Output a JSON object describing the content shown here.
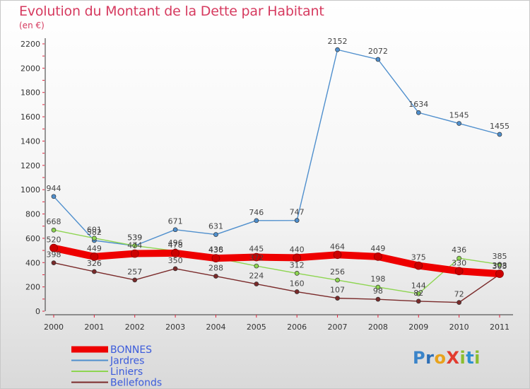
{
  "header": {
    "title": "Evolution du Montant de la Dette par Habitant",
    "subtitle": "(en €)"
  },
  "logo": {
    "text": "ProXiti"
  },
  "chart_data": {
    "type": "line",
    "title": "Evolution du Montant de la Dette par Habitant",
    "subtitle": "(en €)",
    "xlabel": "",
    "ylabel": "",
    "x": [
      "2000",
      "2001",
      "2002",
      "2003",
      "2004",
      "2005",
      "2006",
      "2007",
      "2008",
      "2009",
      "2010",
      "2011"
    ],
    "ylim": [
      0,
      2200
    ],
    "yticks": [
      0,
      200,
      400,
      600,
      800,
      1000,
      1200,
      1400,
      1600,
      1800,
      2000,
      2200
    ],
    "grid": false,
    "legend_position": "bottom-left",
    "series": [
      {
        "name": "BONNES",
        "color": "#ee0000",
        "values": [
          520,
          449,
          474,
          478,
          436,
          445,
          440,
          464,
          449,
          375,
          330,
          308
        ]
      },
      {
        "name": "Jardres",
        "color": "#4f8fcd",
        "values": [
          944,
          582,
          539,
          671,
          631,
          746,
          747,
          2152,
          2072,
          1634,
          1545,
          1455
        ]
      },
      {
        "name": "Liniers",
        "color": "#8ed551",
        "values": [
          668,
          601,
          539,
          496,
          438,
          372,
          312,
          256,
          198,
          144,
          436,
          385
        ]
      },
      {
        "name": "Bellefonds",
        "color": "#7a2a2a",
        "values": [
          398,
          326,
          257,
          350,
          288,
          224,
          160,
          107,
          98,
          82,
          72,
          303
        ]
      }
    ]
  }
}
